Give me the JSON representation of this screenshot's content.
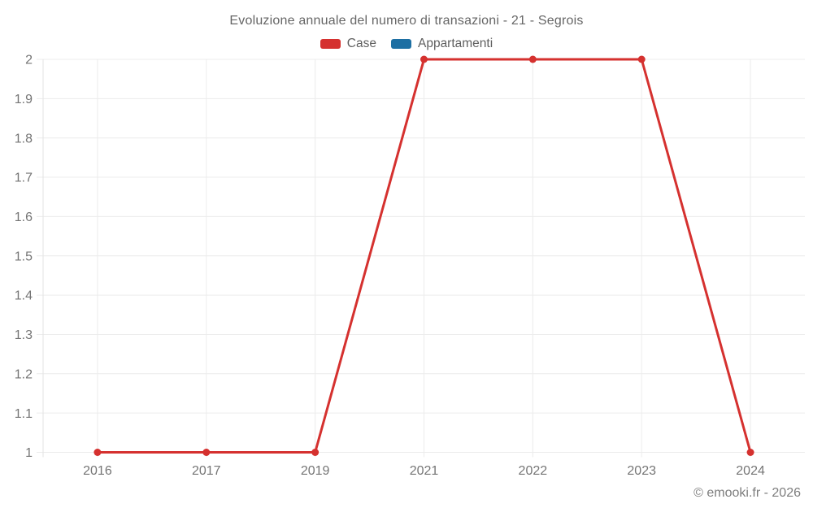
{
  "page": {
    "watermark": "© emooki.fr - 2026"
  },
  "colors": {
    "background": "#ffffff",
    "title_text": "#666666",
    "legend_text": "#5f5f5f",
    "tick_text": "#757575",
    "grid": "#ececec",
    "axis_border": "#e3e3e3",
    "watermark_text": "#7d7d7d",
    "series_case": "#d5312f",
    "series_appartamenti": "#1d6fa3"
  },
  "chart_data": {
    "type": "line",
    "title": "Evoluzione annuale del numero di transazioni - 21 - Segrois",
    "categories": [
      "2016",
      "2017",
      "2019",
      "2021",
      "2022",
      "2023",
      "2024"
    ],
    "series": [
      {
        "name": "Case",
        "color": "#d5312f",
        "values": [
          1,
          1,
          1,
          2,
          2,
          2,
          1
        ]
      },
      {
        "name": "Appartamenti",
        "color": "#1d6fa3",
        "values": [
          null,
          null,
          null,
          null,
          null,
          null,
          null
        ]
      }
    ],
    "xlabel": "",
    "ylabel": "",
    "ylim": [
      1,
      2
    ],
    "ytick_step": 0.1,
    "ytick_labels": [
      "1",
      "1.1",
      "1.2",
      "1.3",
      "1.4",
      "1.5",
      "1.6",
      "1.7",
      "1.8",
      "1.9",
      "2"
    ],
    "grid": true,
    "legend_position": "top",
    "marker": "circle",
    "marker_radius": 4.5,
    "line_width": 3
  }
}
